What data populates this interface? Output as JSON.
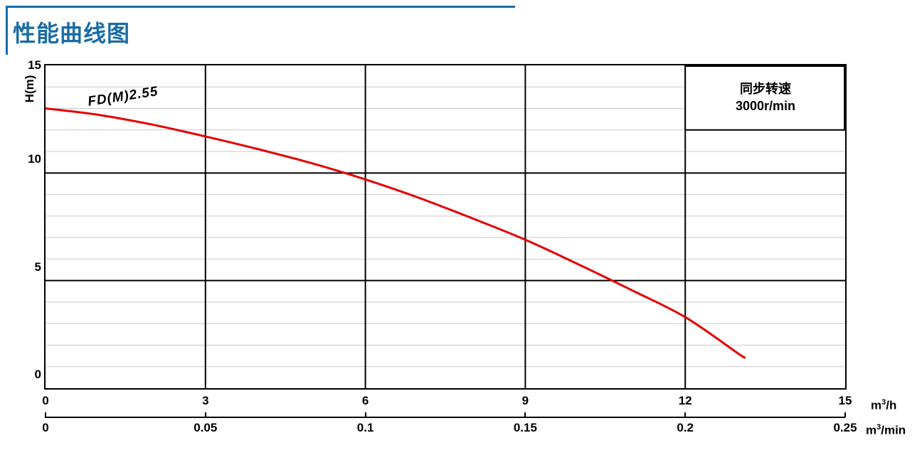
{
  "page": {
    "title": "性能曲线图"
  },
  "colors": {
    "accent_blue": "#1a6ca5",
    "curve_red": "#e60000",
    "grid_minor": "#c9c9c9",
    "grid_major": "#000000"
  },
  "units": {
    "primary": {
      "base": "m",
      "sup": "3",
      "suffix": "/h"
    },
    "secondary": {
      "base": "m",
      "sup": "3",
      "suffix": "/min"
    }
  },
  "chart_data": {
    "type": "line",
    "title": "性能曲线图",
    "ylabel": "H(m)",
    "x_axis_primary_unit": "m³/h",
    "x_axis_secondary_unit": "m³/min",
    "xlim": [
      0,
      15
    ],
    "ylim": [
      0,
      15
    ],
    "x_ticks_primary": [
      0,
      3,
      6,
      9,
      12,
      15
    ],
    "x_ticks_secondary": [
      "0",
      "0.05",
      "0.1",
      "0.15",
      "0.2",
      "0.25"
    ],
    "y_ticks": [
      0,
      5,
      10,
      15
    ],
    "y_minor_step": 1,
    "grid": "horizontal-minor, major-both",
    "legend": {
      "lines": [
        "同步转速",
        "3000r/min"
      ],
      "position": "top-right"
    },
    "legend_box": {
      "x": [
        12,
        15
      ],
      "y": [
        12,
        15
      ]
    },
    "series": [
      {
        "name": "FD(M)2.55",
        "color": "#e60000",
        "x": [
          0,
          1,
          2,
          3,
          4,
          5,
          6,
          7,
          8,
          9,
          10,
          11,
          12,
          13,
          13.1
        ],
        "y": [
          13.0,
          12.7,
          12.25,
          11.7,
          11.1,
          10.45,
          9.7,
          8.85,
          7.9,
          6.9,
          5.75,
          4.55,
          3.3,
          1.6,
          1.45
        ]
      }
    ]
  }
}
